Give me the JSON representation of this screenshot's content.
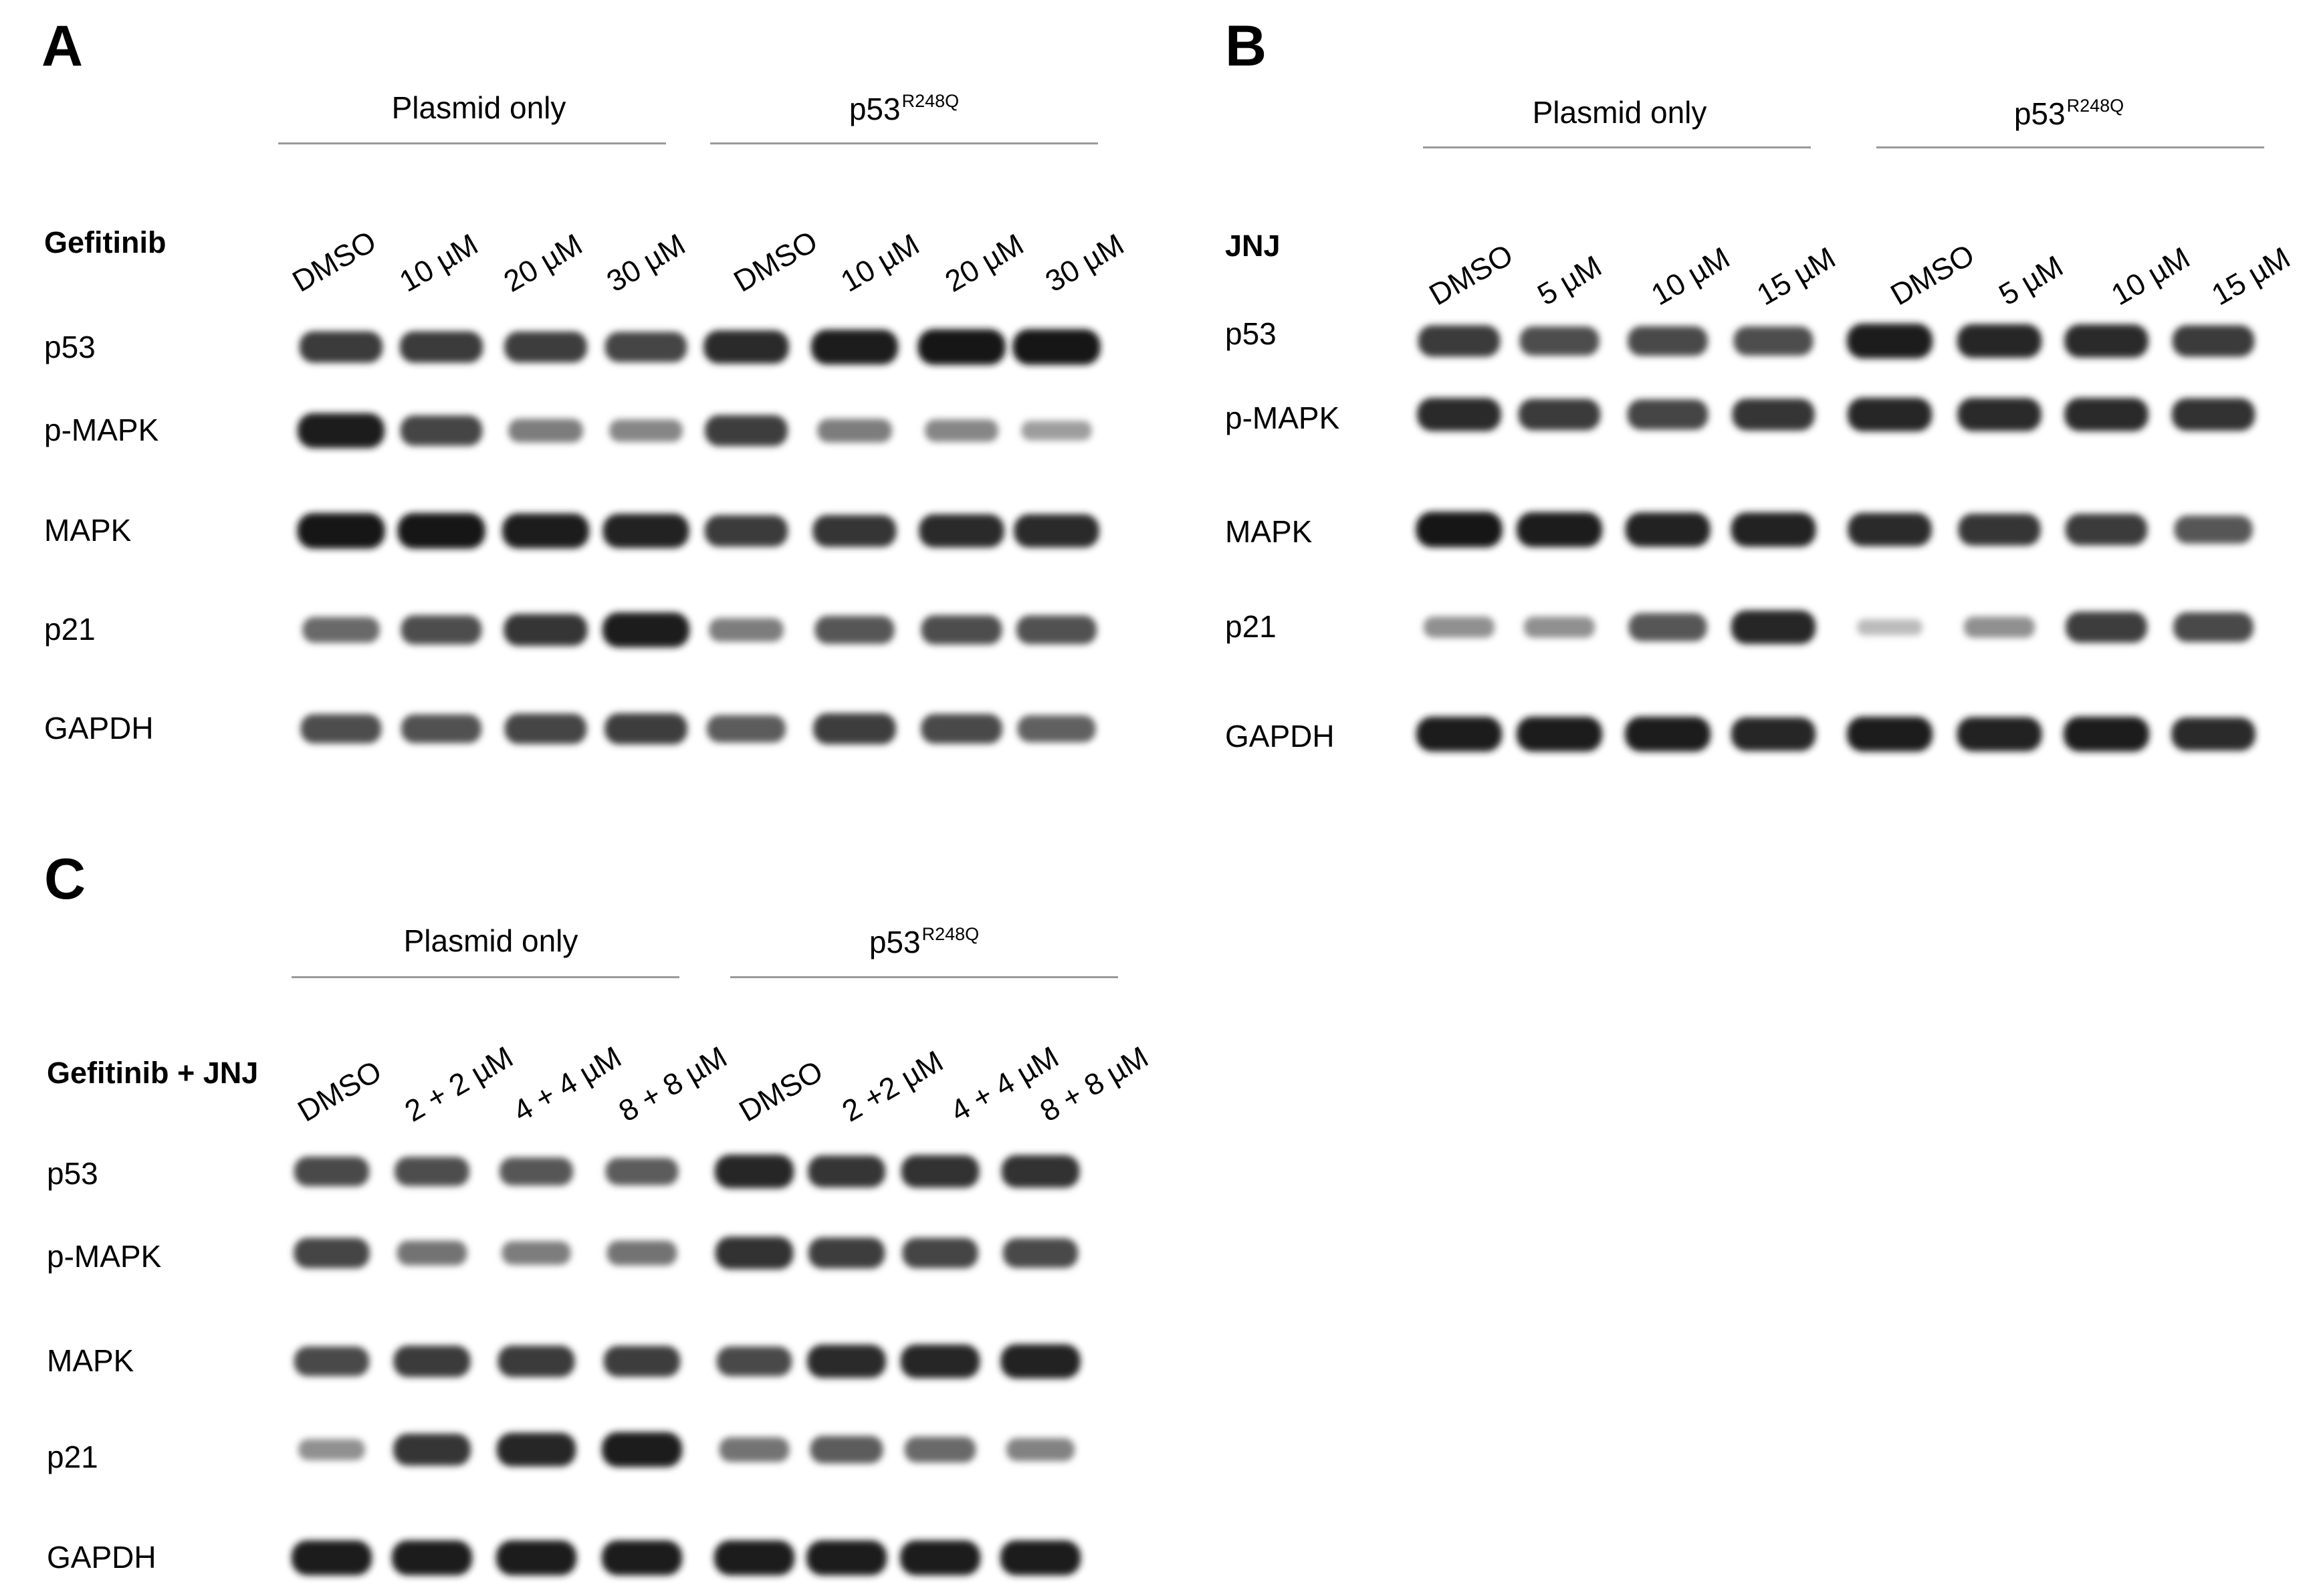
{
  "panels": [
    {
      "letter": "A",
      "groups": [
        {
          "label": "Plasmid only"
        },
        {
          "label": "p53",
          "superscript": "R248Q"
        }
      ],
      "treatment_label": "Gefitinib",
      "lanes": [
        "DMSO",
        "10 µM",
        "20 µM",
        "30 µM",
        "DMSO",
        "10 µM",
        "20 µM",
        "30 µM"
      ],
      "rows": [
        {
          "label": "p53",
          "intensity": [
            0.8,
            0.8,
            0.78,
            0.75,
            0.88,
            0.95,
            0.98,
            0.98
          ]
        },
        {
          "label": "p-MAPK",
          "intensity": [
            0.95,
            0.75,
            0.45,
            0.4,
            0.78,
            0.45,
            0.4,
            0.28
          ]
        },
        {
          "label": "MAPK",
          "intensity": [
            0.98,
            0.98,
            0.95,
            0.92,
            0.8,
            0.82,
            0.88,
            0.88
          ]
        },
        {
          "label": "p21",
          "intensity": [
            0.55,
            0.7,
            0.82,
            0.95,
            0.45,
            0.65,
            0.7,
            0.68
          ]
        },
        {
          "label": "GAPDH",
          "intensity": [
            0.7,
            0.68,
            0.75,
            0.78,
            0.62,
            0.78,
            0.72,
            0.6
          ]
        }
      ]
    },
    {
      "letter": "B",
      "groups": [
        {
          "label": "Plasmid only"
        },
        {
          "label": "p53",
          "superscript": "R248Q"
        }
      ],
      "treatment_label": "JNJ",
      "lanes": [
        "DMSO",
        "5 µM",
        "10 µM",
        "15 µM",
        "DMSO",
        "5 µM",
        "10 µM",
        "15 µM"
      ],
      "rows": [
        {
          "label": "p53",
          "intensity": [
            0.8,
            0.7,
            0.72,
            0.7,
            0.95,
            0.9,
            0.88,
            0.8
          ]
        },
        {
          "label": "p-MAPK",
          "intensity": [
            0.88,
            0.8,
            0.75,
            0.82,
            0.9,
            0.88,
            0.88,
            0.85
          ]
        },
        {
          "label": "MAPK",
          "intensity": [
            0.98,
            0.95,
            0.92,
            0.92,
            0.88,
            0.82,
            0.8,
            0.65
          ]
        },
        {
          "label": "p21",
          "intensity": [
            0.35,
            0.35,
            0.65,
            0.9,
            0.12,
            0.35,
            0.78,
            0.72
          ]
        },
        {
          "label": "GAPDH",
          "intensity": [
            0.95,
            0.95,
            0.95,
            0.9,
            0.95,
            0.92,
            0.95,
            0.88
          ]
        }
      ]
    },
    {
      "letter": "C",
      "groups": [
        {
          "label": "Plasmid only"
        },
        {
          "label": "p53",
          "superscript": "R248Q"
        }
      ],
      "treatment_label": "Gefitinib + JNJ",
      "lanes": [
        "DMSO",
        "2 + 2 µM",
        "4 + 4 µM",
        "8 + 8 µM",
        "DMSO",
        "2 +2 µM",
        "4 + 4 µM",
        "8 + 8 µM"
      ],
      "rows": [
        {
          "label": "p53",
          "intensity": [
            0.72,
            0.7,
            0.65,
            0.62,
            0.9,
            0.82,
            0.85,
            0.85
          ]
        },
        {
          "label": "p-MAPK",
          "intensity": [
            0.75,
            0.5,
            0.45,
            0.5,
            0.85,
            0.78,
            0.75,
            0.72
          ]
        },
        {
          "label": "MAPK",
          "intensity": [
            0.72,
            0.8,
            0.8,
            0.78,
            0.72,
            0.88,
            0.9,
            0.92
          ]
        },
        {
          "label": "p21",
          "intensity": [
            0.35,
            0.82,
            0.9,
            0.95,
            0.5,
            0.62,
            0.55,
            0.42
          ]
        },
        {
          "label": "GAPDH",
          "intensity": [
            0.95,
            0.95,
            0.95,
            0.95,
            0.95,
            0.95,
            0.95,
            0.95
          ]
        }
      ]
    }
  ]
}
